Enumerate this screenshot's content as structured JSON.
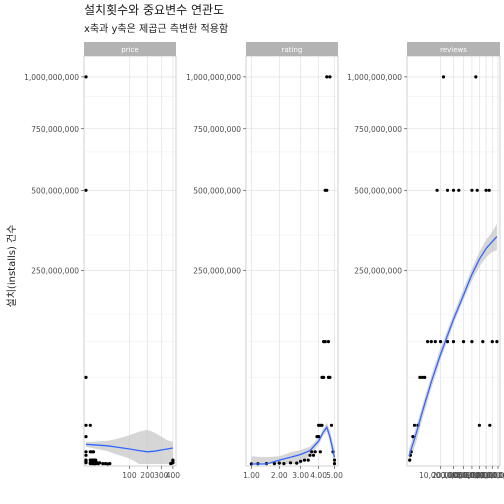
{
  "chart_data": {
    "type": "scatter",
    "title": "설치횟수와 중요변수 연관도",
    "subtitle": "x축과 y축은 제곱근 측변한 적용함",
    "ylabel": "설치(installs) 건수",
    "y_scale": "sqrt",
    "y_ticks": [
      250000000,
      500000000,
      750000000,
      1000000000
    ],
    "y_tick_labels": [
      "250,000,000",
      "500,000,000",
      "750,000,000",
      "1,000,000,000"
    ],
    "ylim": [
      0,
      1100000000
    ],
    "grid": true,
    "smooth_color": "#3366ff",
    "point_color": "#000000",
    "ribbon_color": "#c8c8c8",
    "strip_color": "#b3b3b3",
    "panels": [
      {
        "name": "price",
        "x_scale": "sqrt",
        "xlim": [
          0,
          410
        ],
        "x_ticks": [
          100,
          200,
          300,
          400
        ],
        "x_tick_labels": [
          "100",
          "200",
          "300",
          "400"
        ],
        "points": [
          [
            0,
            1000000000
          ],
          [
            0,
            500000000
          ],
          [
            0,
            50000000
          ],
          [
            0,
            10000000
          ],
          [
            0,
            5000000
          ],
          [
            0,
            1000000
          ],
          [
            0,
            500000
          ],
          [
            0,
            100000
          ],
          [
            0,
            50000
          ],
          [
            0,
            10000
          ],
          [
            0.99,
            10000000
          ],
          [
            0.99,
            1000000
          ],
          [
            0.99,
            100000
          ],
          [
            0.99,
            10000
          ],
          [
            0.99,
            1000
          ],
          [
            1.99,
            1000000
          ],
          [
            1.99,
            100000
          ],
          [
            1.99,
            10000
          ],
          [
            1.99,
            1000
          ],
          [
            2.99,
            1000000
          ],
          [
            2.99,
            100000
          ],
          [
            2.99,
            10000
          ],
          [
            2.99,
            1000
          ],
          [
            3.99,
            100000
          ],
          [
            3.99,
            10000
          ],
          [
            3.99,
            1000
          ],
          [
            4.99,
            100000
          ],
          [
            4.99,
            10000
          ],
          [
            4.99,
            1000
          ],
          [
            5.99,
            10000
          ],
          [
            6.99,
            10000
          ],
          [
            7.99,
            1000
          ],
          [
            9.99,
            10000
          ],
          [
            14.99,
            1000
          ],
          [
            19.99,
            1000
          ],
          [
            24.99,
            100
          ],
          [
            29.99,
            1000
          ],
          [
            399.99,
            10000
          ],
          [
            399.99,
            100000
          ],
          [
            389.99,
            5000
          ],
          [
            379.99,
            1000
          ],
          [
            400,
            50000
          ]
        ],
        "smooth": {
          "x": [
            0,
            25,
            50,
            100,
            150,
            200,
            250,
            300,
            350,
            400
          ],
          "y": [
            2600000,
            2200000,
            1900000,
            1500000,
            1200000,
            1000000,
            1100000,
            1300000,
            1500000,
            1700000
          ],
          "lo": [
            2000000,
            1100000,
            600000,
            200000,
            0,
            0,
            0,
            0,
            0,
            0
          ],
          "hi": [
            3200000,
            3600000,
            4200000,
            5500000,
            7000000,
            7800000,
            6500000,
            5000000,
            3800000,
            3200000
          ]
        }
      },
      {
        "name": "rating",
        "x_scale": "sqrt",
        "xlim": [
          0.9,
          5.1
        ],
        "x_ticks": [
          1,
          2,
          3,
          4,
          5
        ],
        "x_tick_labels": [
          "1.00",
          "2.00",
          "3.00",
          "4.00",
          "5.00"
        ],
        "points": [
          [
            1.0,
            100
          ],
          [
            1.2,
            500
          ],
          [
            1.5,
            1000
          ],
          [
            1.8,
            1000
          ],
          [
            2.0,
            5000
          ],
          [
            2.2,
            1000
          ],
          [
            2.5,
            10000
          ],
          [
            2.8,
            5000
          ],
          [
            3.0,
            50000
          ],
          [
            3.2,
            100000
          ],
          [
            3.4,
            100000
          ],
          [
            3.5,
            500000
          ],
          [
            3.6,
            1000000
          ],
          [
            3.7,
            500000
          ],
          [
            3.8,
            1000000
          ],
          [
            3.9,
            5000000
          ],
          [
            4.0,
            5000000
          ],
          [
            4.0,
            10000000
          ],
          [
            4.1,
            10000000
          ],
          [
            4.1,
            1000000
          ],
          [
            4.2,
            50000000
          ],
          [
            4.2,
            10000000
          ],
          [
            4.3,
            100000000
          ],
          [
            4.3,
            50000000
          ],
          [
            4.4,
            500000000
          ],
          [
            4.4,
            100000000
          ],
          [
            4.5,
            500000000
          ],
          [
            4.5,
            1000000000
          ],
          [
            4.6,
            100000000
          ],
          [
            4.6,
            50000000
          ],
          [
            4.7,
            1000000000
          ],
          [
            4.7,
            50000000
          ],
          [
            4.8,
            10000000
          ],
          [
            4.9,
            1000000
          ],
          [
            5.0,
            100000
          ],
          [
            5.0,
            1000
          ]
        ],
        "smooth": {
          "x": [
            1,
            1.5,
            2,
            2.5,
            3,
            3.5,
            4,
            4.3,
            4.5,
            4.7,
            5
          ],
          "y": [
            0,
            0,
            100000,
            300000,
            600000,
            1200000,
            3500000,
            7000000,
            9000000,
            5000000,
            300000
          ],
          "lo": [
            0,
            0,
            0,
            0,
            0,
            500000,
            2500000,
            5500000,
            7000000,
            3000000,
            0
          ],
          "hi": [
            400000,
            300000,
            400000,
            900000,
            1300000,
            2000000,
            4500000,
            8500000,
            11500000,
            7500000,
            1500000
          ]
        }
      },
      {
        "name": "reviews",
        "x_scale": "sqrt",
        "xlim": [
          0,
          80000000
        ],
        "x_ticks": [
          10000000,
          20000000,
          30000000,
          40000000,
          50000000,
          60000000,
          70000000,
          80000000
        ],
        "x_tick_labels": [
          "10,000,000",
          "20,000,000",
          "30,000,000",
          "40,000,000",
          "50,000,000",
          "60,000,000",
          "70,000,000",
          "80,000,000"
        ],
        "points": [
          [
            5000,
            100000
          ],
          [
            20000,
            500000
          ],
          [
            50000,
            1000000
          ],
          [
            150000,
            5000000
          ],
          [
            300000,
            10000000
          ],
          [
            800000,
            10000000
          ],
          [
            1200000,
            50000000
          ],
          [
            1800000,
            50000000
          ],
          [
            2500000,
            50000000
          ],
          [
            3500000,
            100000000
          ],
          [
            5000000,
            100000000
          ],
          [
            7000000,
            100000000
          ],
          [
            10000000,
            100000000
          ],
          [
            15000000,
            100000000
          ],
          [
            20000000,
            100000000
          ],
          [
            30000000,
            100000000
          ],
          [
            40000000,
            100000000
          ],
          [
            55000000,
            100000000
          ],
          [
            70000000,
            100000000
          ],
          [
            78000000,
            100000000
          ],
          [
            8000000,
            500000000
          ],
          [
            15000000,
            500000000
          ],
          [
            20000000,
            500000000
          ],
          [
            25000000,
            500000000
          ],
          [
            40000000,
            500000000
          ],
          [
            47000000,
            500000000
          ],
          [
            60000000,
            500000000
          ],
          [
            65000000,
            500000000
          ],
          [
            12000000,
            1000000000
          ],
          [
            45000000,
            1000000000
          ],
          [
            50000000,
            10000000
          ],
          [
            66000000,
            10000000
          ]
        ],
        "smooth": {
          "x": [
            0,
            500000,
            2000000,
            5000000,
            10000000,
            20000000,
            30000000,
            40000000,
            50000000,
            60000000,
            70000000,
            78000000
          ],
          "y": [
            400000,
            6000000,
            20000000,
            45000000,
            80000000,
            140000000,
            190000000,
            240000000,
            280000000,
            310000000,
            330000000,
            345000000
          ],
          "lo": [
            0,
            3000000,
            15000000,
            38000000,
            72000000,
            130000000,
            180000000,
            225000000,
            260000000,
            285000000,
            300000000,
            305000000
          ],
          "hi": [
            1500000,
            9000000,
            25000000,
            52000000,
            90000000,
            150000000,
            205000000,
            255000000,
            300000000,
            335000000,
            360000000,
            385000000
          ]
        }
      }
    ]
  }
}
